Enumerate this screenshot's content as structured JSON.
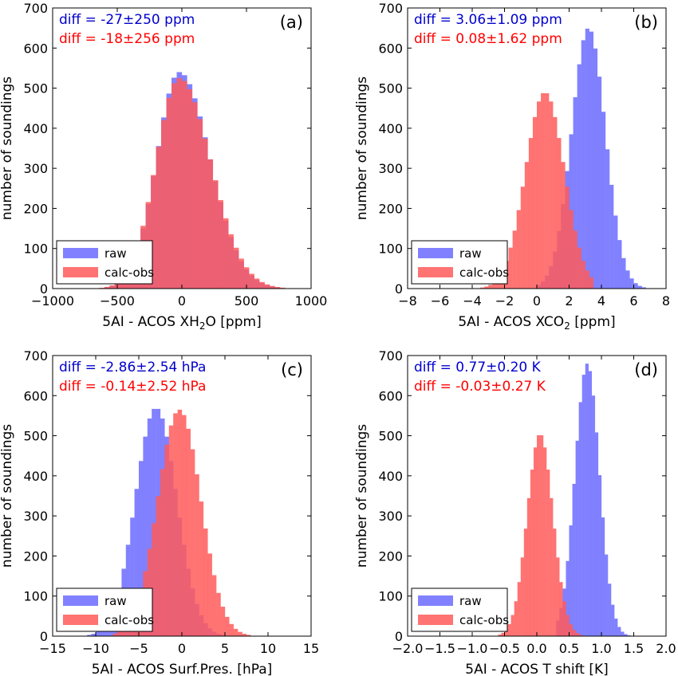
{
  "figure": {
    "colors": {
      "raw": "#6b6bff",
      "calcobs": "#ff5a5a",
      "raw_stat": "#0000cc",
      "calcobs_stat": "#ff0000"
    }
  },
  "chart_data": [
    {
      "type": "histogram",
      "tag": "(a)",
      "xlabel_prefix": "5AI - ACOS XH",
      "xlabel_sub": "2",
      "xlabel_suffix": "O [ppm]",
      "ylabel": "number of soundings",
      "xlim": [
        -1000,
        1000
      ],
      "ylim": [
        0,
        700
      ],
      "xticks": [
        -1000,
        -500,
        0,
        500,
        1000
      ],
      "xtick_labels": [
        "−1000",
        "−500",
        "0",
        "500",
        "1000"
      ],
      "yticks": [
        0,
        100,
        200,
        300,
        400,
        500,
        600,
        700
      ],
      "ytick_labels": [
        "0",
        "100",
        "200",
        "300",
        "400",
        "500",
        "600",
        "700"
      ],
      "stats": [
        {
          "text_prefix": "diff = -27",
          "pm": "±",
          "text_suffix": "250 ppm"
        },
        {
          "text_prefix": "diff = -18",
          "pm": "±",
          "text_suffix": "256 ppm"
        }
      ],
      "legend": [
        "raw",
        "calc-obs"
      ],
      "legend_position": "lower-left",
      "series": [
        {
          "name": "raw",
          "mu": -20,
          "sd": 175,
          "peak": 540,
          "skew": 0.35,
          "lo": -800,
          "hi": 1000
        },
        {
          "name": "calc-obs",
          "mu": -20,
          "sd": 180,
          "peak": 525,
          "skew": 0.35,
          "lo": -800,
          "hi": 1000
        }
      ],
      "bins": {
        "lo": -1000,
        "width": 40,
        "count": 50
      }
    },
    {
      "type": "histogram",
      "tag": "(b)",
      "xlabel_prefix": "5AI - ACOS XCO",
      "xlabel_sub": "2",
      "xlabel_suffix": " [ppm]",
      "ylabel": "number of soundings",
      "xlim": [
        -8,
        8
      ],
      "ylim": [
        0,
        700
      ],
      "xticks": [
        -8,
        -6,
        -4,
        -2,
        0,
        2,
        4,
        6,
        8
      ],
      "xtick_labels": [
        "−8",
        "−6",
        "−4",
        "−2",
        "0",
        "2",
        "4",
        "6",
        "8"
      ],
      "yticks": [
        0,
        100,
        200,
        300,
        400,
        500,
        600,
        700
      ],
      "ytick_labels": [
        "0",
        "100",
        "200",
        "300",
        "400",
        "500",
        "600",
        "700"
      ],
      "stats": [
        {
          "text_prefix": "diff = 3.06",
          "pm": "±",
          "text_suffix": "1.09 ppm"
        },
        {
          "text_prefix": "diff = 0.08",
          "pm": "±",
          "text_suffix": "1.62 ppm"
        }
      ],
      "legend": [
        "raw",
        "calc-obs"
      ],
      "legend_position": "lower-left",
      "series": [
        {
          "name": "raw",
          "mu": 3.2,
          "sd": 1.05,
          "peak": 650,
          "skew": 0,
          "lo": 0,
          "hi": 7.5
        },
        {
          "name": "calc-obs",
          "mu": 0.5,
          "sd": 1.2,
          "peak": 490,
          "skew": 0,
          "lo": -6.5,
          "hi": 3.5
        }
      ],
      "bins": {
        "lo": -8,
        "width": 0.25,
        "count": 64
      }
    },
    {
      "type": "histogram",
      "tag": "(c)",
      "xlabel_prefix": "5AI - ACOS Surf.Pres. [hPa]",
      "xlabel_sub": "",
      "xlabel_suffix": "",
      "ylabel": "number of soundings",
      "xlim": [
        -15,
        15
      ],
      "ylim": [
        0,
        700
      ],
      "xticks": [
        -15,
        -10,
        -5,
        0,
        5,
        10,
        15
      ],
      "xtick_labels": [
        "−15",
        "−10",
        "−5",
        "0",
        "5",
        "10",
        "15"
      ],
      "yticks": [
        0,
        100,
        200,
        300,
        400,
        500,
        600,
        700
      ],
      "ytick_labels": [
        "0",
        "100",
        "200",
        "300",
        "400",
        "500",
        "600",
        "700"
      ],
      "stats": [
        {
          "text_prefix": "diff = -2.86",
          "pm": "±",
          "text_suffix": "2.54 hPa"
        },
        {
          "text_prefix": "diff = -0.14",
          "pm": "±",
          "text_suffix": "2.52 hPa"
        }
      ],
      "legend": [
        "raw",
        "calc-obs"
      ],
      "legend_position": "lower-left",
      "series": [
        {
          "name": "raw",
          "mu": -3.0,
          "sd": 2.4,
          "peak": 570,
          "skew": 0,
          "lo": -11,
          "hi": 8
        },
        {
          "name": "calc-obs",
          "mu": -0.3,
          "sd": 2.5,
          "peak": 565,
          "skew": 0,
          "lo": -8,
          "hi": 11
        }
      ],
      "bins": {
        "lo": -15,
        "width": 0.5,
        "count": 60
      }
    },
    {
      "type": "histogram",
      "tag": "(d)",
      "xlabel_prefix": "5AI - ACOS T shift [K]",
      "xlabel_sub": "",
      "xlabel_suffix": "",
      "ylabel": "number of soundings",
      "xlim": [
        -2.0,
        2.0
      ],
      "ylim": [
        0,
        700
      ],
      "xticks": [
        -2.0,
        -1.5,
        -1.0,
        -0.5,
        0.0,
        0.5,
        1.0,
        1.5,
        2.0
      ],
      "xtick_labels": [
        "−2.0",
        "−1.5",
        "−1.0",
        "−0.5",
        "0.0",
        "0.5",
        "1.0",
        "1.5",
        "2.0"
      ],
      "yticks": [
        0,
        100,
        200,
        300,
        400,
        500,
        600,
        700
      ],
      "ytick_labels": [
        "0",
        "100",
        "200",
        "300",
        "400",
        "500",
        "600",
        "700"
      ],
      "stats": [
        {
          "text_prefix": "diff = 0.77",
          "pm": "±",
          "text_suffix": "0.20 K"
        },
        {
          "text_prefix": "diff = -0.03",
          "pm": "±",
          "text_suffix": "0.27 K"
        }
      ],
      "legend": [
        "raw",
        "calc-obs"
      ],
      "legend_position": "lower-left",
      "series": [
        {
          "name": "raw",
          "mu": 0.78,
          "sd": 0.19,
          "peak": 680,
          "skew": 0,
          "lo": 0.3,
          "hi": 1.8
        },
        {
          "name": "calc-obs",
          "mu": 0.05,
          "sd": 0.2,
          "peak": 505,
          "skew": 0,
          "lo": -1.0,
          "hi": 0.7
        }
      ],
      "bins": {
        "lo": -2.0,
        "width": 0.05,
        "count": 80
      }
    }
  ]
}
